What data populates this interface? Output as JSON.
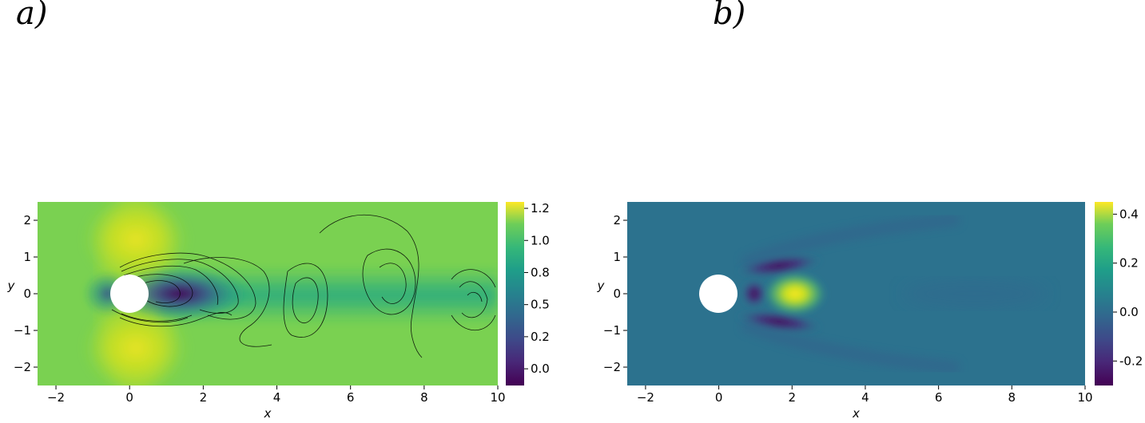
{
  "panels": [
    {
      "label": "a)"
    },
    {
      "label": "b)"
    }
  ],
  "chart_data": [
    {
      "type": "heatmap",
      "panel": "a)",
      "title": "",
      "xlabel": "x",
      "ylabel": "y",
      "xlim": [
        -2.5,
        10
      ],
      "ylim": [
        -2.5,
        2.5
      ],
      "xticks": [
        -2,
        0,
        2,
        4,
        6,
        8,
        10
      ],
      "yticks": [
        -2,
        -1,
        0,
        1,
        2
      ],
      "colormap": "viridis",
      "colorbar": {
        "min": -0.13,
        "max": 1.3,
        "ticks": [
          "0.0",
          "0.2",
          "0.5",
          "0.8",
          "1.0",
          "1.2"
        ],
        "tick_values": [
          0.0,
          0.25,
          0.5,
          0.75,
          1.0,
          1.25
        ]
      },
      "cylinder": {
        "center": [
          0,
          0
        ],
        "radius": 0.5
      },
      "contours": "black vortex contour lines in wake",
      "field": "velocity magnitude, max ~1.3 above/below cylinder, ~1.0 freestream, ~0 in wake behind cylinder"
    },
    {
      "type": "heatmap",
      "panel": "b)",
      "title": "",
      "xlabel": "x",
      "ylabel": "y",
      "xlim": [
        -2.5,
        10
      ],
      "ylim": [
        -2.5,
        2.5
      ],
      "xticks": [
        -2,
        0,
        2,
        4,
        6,
        8,
        10
      ],
      "yticks": [
        -2,
        -1,
        0,
        1,
        2
      ],
      "colormap": "viridis",
      "colorbar": {
        "min": -0.3,
        "max": 0.45,
        "ticks": [
          "-0.2",
          "0.0",
          "0.2",
          "0.4"
        ],
        "tick_values": [
          -0.2,
          0.0,
          0.2,
          0.4
        ]
      },
      "cylinder": {
        "center": [
          0,
          0
        ],
        "radius": 0.5
      },
      "features": [
        {
          "x": 2.0,
          "y": 0.0,
          "value": 0.45
        },
        {
          "x": 1.0,
          "y": 0.0,
          "value": -0.28
        },
        {
          "x": 1.8,
          "y": 0.85,
          "value": -0.25
        },
        {
          "x": 1.8,
          "y": -0.85,
          "value": -0.25
        }
      ]
    }
  ],
  "colors": {
    "viridis_min": "#440154",
    "viridis_max": "#fde725",
    "contour": "#000000"
  }
}
